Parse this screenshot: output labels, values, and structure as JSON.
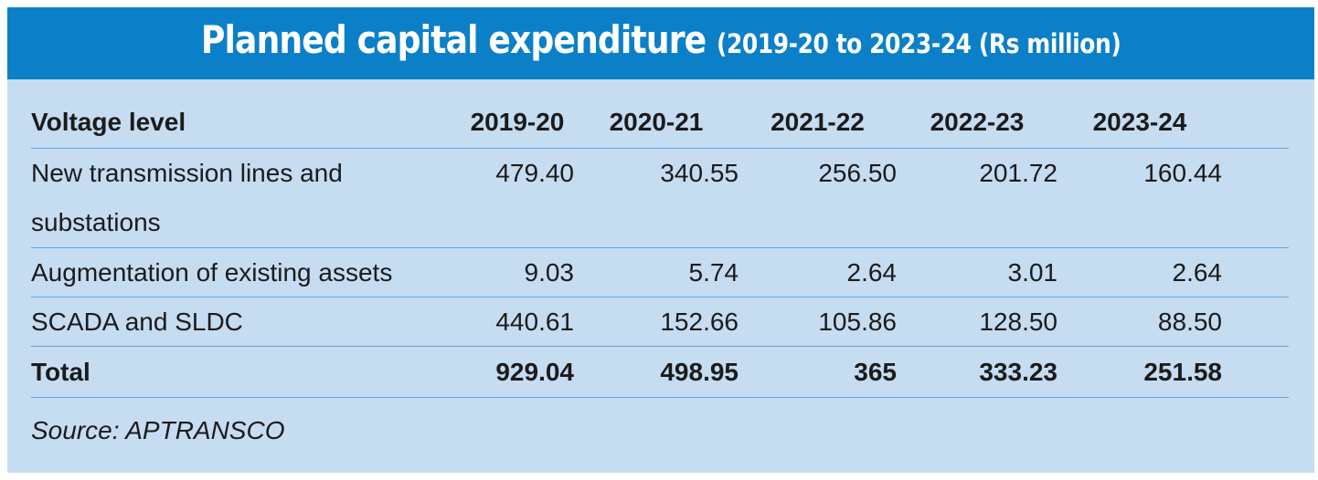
{
  "header": {
    "title": "Planned capital expenditure",
    "subtitle": "(2019-20 to 2023-24 (Rs million)"
  },
  "table": {
    "columns": [
      "Voltage level",
      "2019-20",
      "2020-21",
      "2021-22",
      "2022-23",
      "2023-24"
    ],
    "rows": [
      {
        "label_line1": "New transmission lines and",
        "label_line2": "substations",
        "values": [
          "479.40",
          "340.55",
          "256.50",
          "201.72",
          "160.44"
        ]
      },
      {
        "label": "Augmentation of existing assets",
        "values": [
          "9.03",
          "5.74",
          "2.64",
          "3.01",
          "2.64"
        ]
      },
      {
        "label": "SCADA and SLDC",
        "values": [
          "440.61",
          "152.66",
          "105.86",
          "128.50",
          "88.50"
        ]
      }
    ],
    "total": {
      "label": "Total",
      "values": [
        "929.04",
        "498.95",
        "365",
        "333.23",
        "251.58"
      ]
    }
  },
  "source": "Source: APTRANSCO",
  "colors": {
    "header_bg": "#0b80c8",
    "panel_bg": "#c5dcf1",
    "rule": "#6aa7d7"
  }
}
